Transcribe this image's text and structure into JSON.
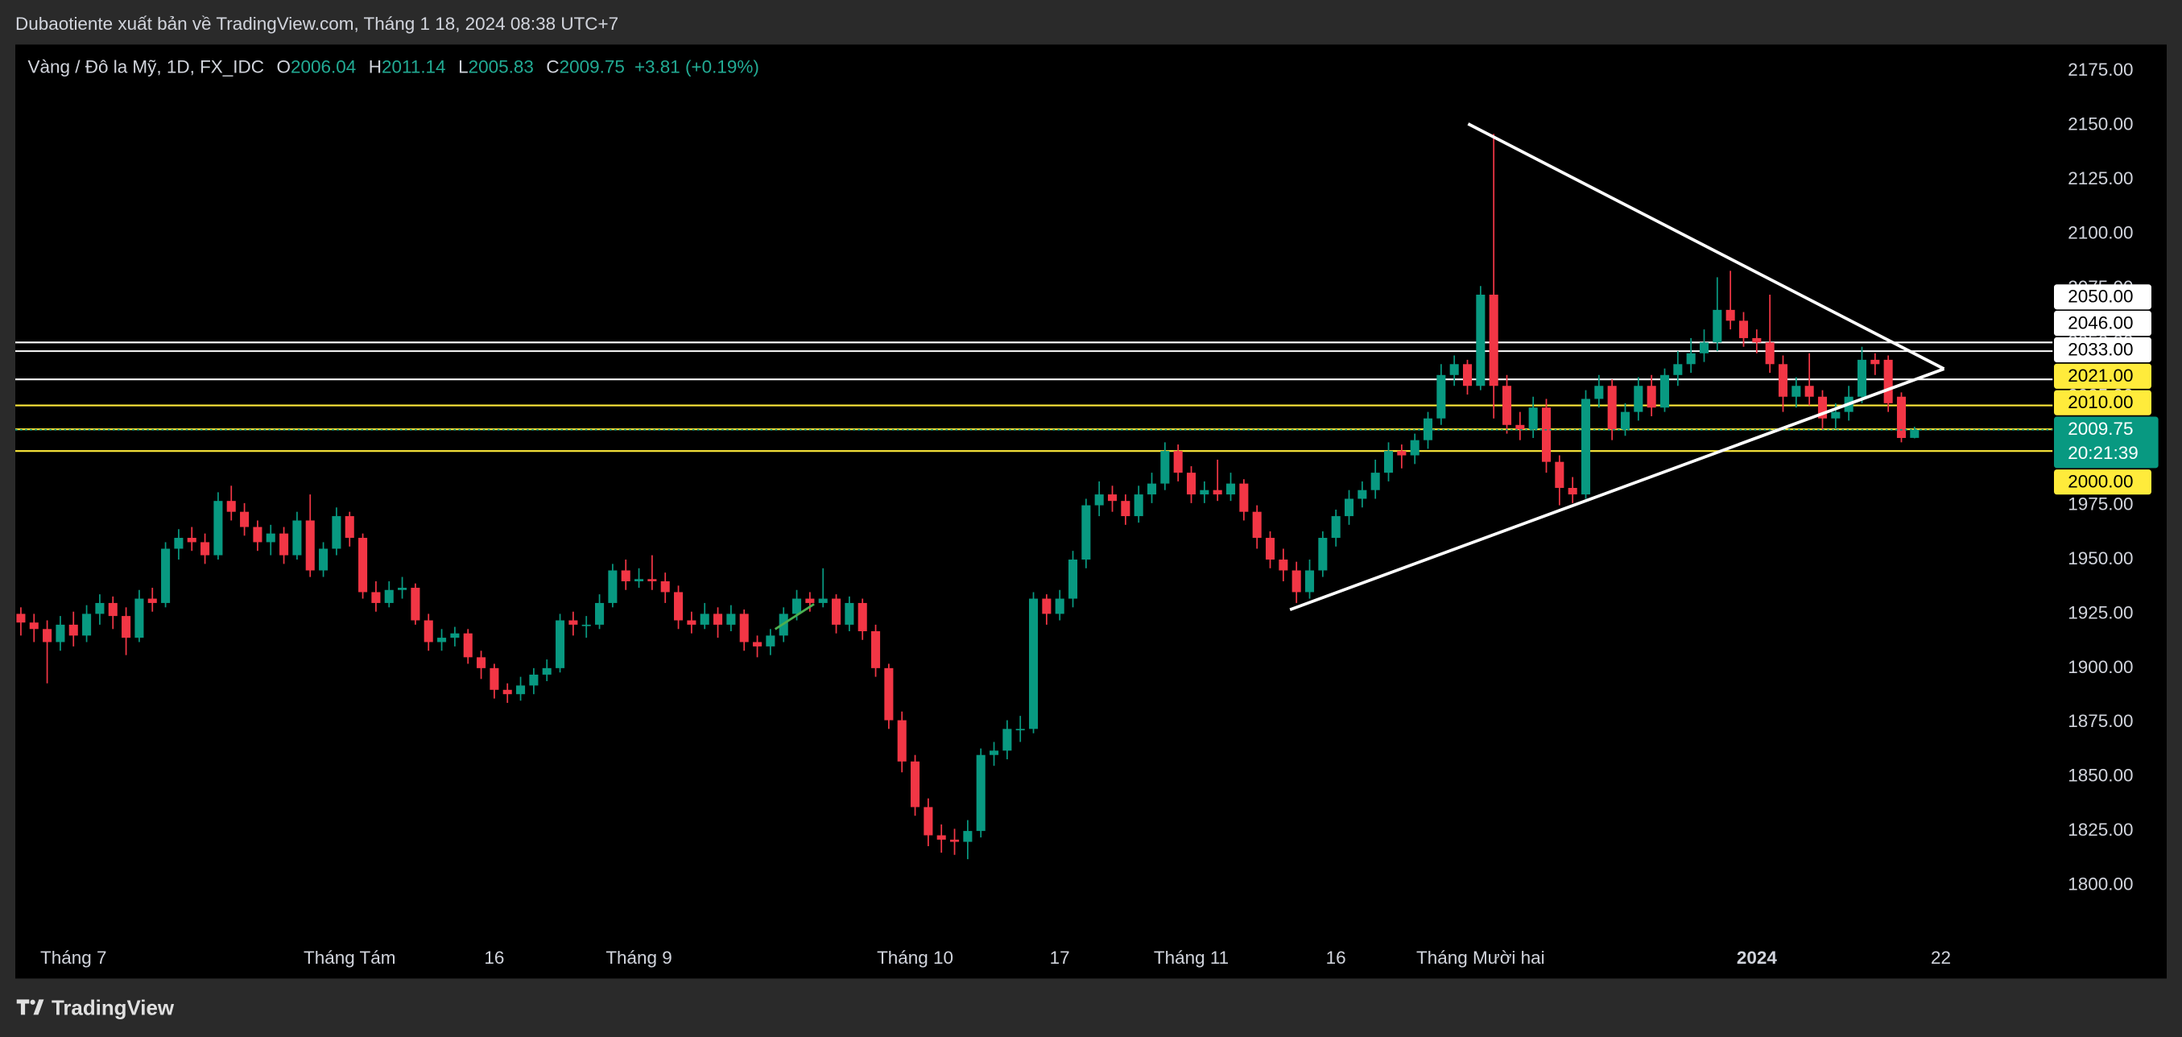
{
  "header": {
    "publisher": "Dubaotiente xuất bản về TradingView.com, Tháng 1 18, 2024 08:38 UTC+7"
  },
  "footer": {
    "brand": "TradingView"
  },
  "legend": {
    "symbol": "Vàng / Đô la Mỹ, 1D, FX_IDC",
    "keys": [
      "O",
      "H",
      "L",
      "C"
    ],
    "change": "+3.81 (+0.19%)",
    "color": "#22ab94"
  },
  "chart_data": {
    "type": "candlestick",
    "up_color": "#089981",
    "down_color": "#f23645",
    "ylim": [
      1773.7,
      2187.2
    ],
    "yticks": [
      {
        "value": 1800,
        "label": "1800.00"
      },
      {
        "value": 1825,
        "label": "1825.00"
      },
      {
        "value": 1850,
        "label": "1850.00"
      },
      {
        "value": 1875,
        "label": "1875.00"
      },
      {
        "value": 1900,
        "label": "1900.00"
      },
      {
        "value": 1925,
        "label": "1925.00"
      },
      {
        "value": 1950,
        "label": "1950.00"
      },
      {
        "value": 1975,
        "label": "1975.00"
      },
      {
        "value": 2000,
        "label": "2000.00"
      },
      {
        "value": 2025,
        "label": "2025.00"
      },
      {
        "value": 2050,
        "label": "2050.00"
      },
      {
        "value": 2075,
        "label": "2075.00"
      },
      {
        "value": 2100,
        "label": "2100.00"
      },
      {
        "value": 2125,
        "label": "2125.00"
      },
      {
        "value": 2150,
        "label": "2150.00"
      },
      {
        "value": 2175,
        "label": "2175.00"
      }
    ],
    "grid": false,
    "levels": [
      {
        "value": 2050,
        "label": "2050.00",
        "color": "#ffffff"
      },
      {
        "value": 2046,
        "label": "2046.00",
        "color": "#ffffff"
      },
      {
        "value": 2033,
        "label": "2033.00",
        "color": "#ffffff"
      },
      {
        "value": 2021,
        "label": "2021.00",
        "color": "#ffeb3b"
      },
      {
        "value": 2010,
        "label": "2010.00",
        "color": "#ffeb3b"
      },
      {
        "value": 2000,
        "label": "2000.00",
        "color": "#ffeb3b"
      }
    ],
    "current_price_color": "#089981",
    "countdown": "20:21:39",
    "categories": [
      null,
      null,
      null,
      null,
      "Tháng 7",
      null,
      null,
      null,
      null,
      null,
      null,
      null,
      null,
      null,
      null,
      null,
      null,
      null,
      null,
      null,
      null,
      null,
      null,
      null,
      null,
      "Tháng Tám",
      null,
      null,
      null,
      null,
      null,
      null,
      null,
      null,
      null,
      null,
      "16",
      null,
      null,
      null,
      null,
      null,
      null,
      null,
      null,
      null,
      null,
      "Tháng 9",
      null,
      null,
      null,
      null,
      null,
      null,
      null,
      null,
      null,
      null,
      null,
      null,
      null,
      null,
      null,
      null,
      null,
      null,
      null,
      null,
      "Tháng 10",
      null,
      null,
      null,
      null,
      null,
      null,
      null,
      null,
      null,
      null,
      "17",
      null,
      null,
      null,
      null,
      null,
      null,
      null,
      null,
      null,
      "Tháng 11",
      null,
      null,
      null,
      null,
      null,
      null,
      null,
      null,
      null,
      null,
      "16",
      null,
      null,
      null,
      null,
      null,
      null,
      null,
      null,
      null,
      null,
      "Tháng Mười hai",
      null,
      null,
      null,
      null,
      null,
      null,
      null,
      null,
      null,
      null,
      null,
      null,
      null,
      null,
      null,
      null,
      null,
      null,
      null,
      null,
      "2024",
      null,
      null,
      null,
      null,
      null,
      null,
      null,
      null,
      null,
      null,
      null,
      null,
      null,
      "22",
      null,
      null,
      null,
      null,
      null,
      null,
      null,
      null
    ],
    "ohlc": [
      [
        1925,
        1928,
        1915,
        1921
      ],
      [
        1921,
        1925,
        1912,
        1918
      ],
      [
        1918,
        1922,
        1893,
        1912
      ],
      [
        1912,
        1924,
        1908,
        1920
      ],
      [
        1920,
        1926,
        1910,
        1915
      ],
      [
        1915,
        1929,
        1912,
        1925
      ],
      [
        1925,
        1934,
        1920,
        1930
      ],
      [
        1930,
        1933,
        1918,
        1924
      ],
      [
        1924,
        1928,
        1906,
        1914
      ],
      [
        1914,
        1936,
        1912,
        1932
      ],
      [
        1932,
        1937,
        1926,
        1930
      ],
      [
        1930,
        1958,
        1928,
        1955
      ],
      [
        1955,
        1964,
        1950,
        1960
      ],
      [
        1960,
        1965,
        1954,
        1958
      ],
      [
        1958,
        1962,
        1948,
        1952
      ],
      [
        1952,
        1981,
        1950,
        1977
      ],
      [
        1977,
        1984,
        1968,
        1972
      ],
      [
        1972,
        1976,
        1961,
        1965
      ],
      [
        1965,
        1968,
        1954,
        1958
      ],
      [
        1958,
        1966,
        1952,
        1962
      ],
      [
        1962,
        1965,
        1948,
        1952
      ],
      [
        1952,
        1972,
        1950,
        1968
      ],
      [
        1968,
        1980,
        1942,
        1945
      ],
      [
        1945,
        1958,
        1942,
        1955
      ],
      [
        1955,
        1974,
        1952,
        1970
      ],
      [
        1970,
        1972,
        1956,
        1960
      ],
      [
        1960,
        1962,
        1932,
        1935
      ],
      [
        1935,
        1940,
        1926,
        1930
      ],
      [
        1930,
        1940,
        1928,
        1936
      ],
      [
        1936,
        1942,
        1932,
        1937
      ],
      [
        1937,
        1939,
        1920,
        1922
      ],
      [
        1922,
        1925,
        1908,
        1912
      ],
      [
        1912,
        1918,
        1908,
        1914
      ],
      [
        1914,
        1919,
        1910,
        1916
      ],
      [
        1916,
        1918,
        1902,
        1905
      ],
      [
        1905,
        1908,
        1895,
        1900
      ],
      [
        1900,
        1902,
        1886,
        1890
      ],
      [
        1890,
        1893,
        1884,
        1888
      ],
      [
        1888,
        1896,
        1885,
        1892
      ],
      [
        1892,
        1900,
        1888,
        1897
      ],
      [
        1897,
        1904,
        1894,
        1900
      ],
      [
        1900,
        1925,
        1898,
        1922
      ],
      [
        1922,
        1926,
        1915,
        1920
      ],
      [
        1920,
        1924,
        1914,
        1920
      ],
      [
        1920,
        1934,
        1918,
        1930
      ],
      [
        1930,
        1948,
        1928,
        1945
      ],
      [
        1945,
        1950,
        1936,
        1940
      ],
      [
        1940,
        1946,
        1937,
        1941
      ],
      [
        1941,
        1952,
        1936,
        1940
      ],
      [
        1940,
        1944,
        1930,
        1935
      ],
      [
        1935,
        1938,
        1918,
        1922
      ],
      [
        1922,
        1926,
        1916,
        1920
      ],
      [
        1920,
        1930,
        1918,
        1925
      ],
      [
        1925,
        1928,
        1914,
        1920
      ],
      [
        1920,
        1929,
        1917,
        1925
      ],
      [
        1925,
        1927,
        1908,
        1912
      ],
      [
        1912,
        1915,
        1905,
        1910
      ],
      [
        1910,
        1918,
        1906,
        1915
      ],
      [
        1915,
        1928,
        1912,
        1925
      ],
      [
        1925,
        1936,
        1922,
        1932
      ],
      [
        1932,
        1935,
        1926,
        1930
      ],
      [
        1930,
        1946,
        1928,
        1932
      ],
      [
        1932,
        1934,
        1916,
        1920
      ],
      [
        1920,
        1933,
        1917,
        1930
      ],
      [
        1930,
        1932,
        1913,
        1917
      ],
      [
        1917,
        1920,
        1896,
        1900
      ],
      [
        1900,
        1902,
        1872,
        1876
      ],
      [
        1876,
        1880,
        1852,
        1857
      ],
      [
        1857,
        1860,
        1832,
        1836
      ],
      [
        1836,
        1840,
        1818,
        1823
      ],
      [
        1823,
        1828,
        1815,
        1821
      ],
      [
        1821,
        1826,
        1814,
        1820
      ],
      [
        1820,
        1830,
        1812,
        1825
      ],
      [
        1825,
        1863,
        1822,
        1860
      ],
      [
        1860,
        1866,
        1855,
        1862
      ],
      [
        1862,
        1876,
        1858,
        1872
      ],
      [
        1872,
        1878,
        1866,
        1872
      ],
      [
        1872,
        1935,
        1870,
        1932
      ],
      [
        1932,
        1934,
        1920,
        1925
      ],
      [
        1925,
        1936,
        1922,
        1932
      ],
      [
        1932,
        1954,
        1928,
        1950
      ],
      [
        1950,
        1978,
        1946,
        1975
      ],
      [
        1975,
        1986,
        1970,
        1980
      ],
      [
        1980,
        1984,
        1972,
        1977
      ],
      [
        1977,
        1980,
        1966,
        1970
      ],
      [
        1970,
        1984,
        1967,
        1980
      ],
      [
        1980,
        1990,
        1976,
        1985
      ],
      [
        1985,
        2004,
        1982,
        2000
      ],
      [
        2000,
        2003,
        1986,
        1990
      ],
      [
        1990,
        1993,
        1976,
        1980
      ],
      [
        1980,
        1986,
        1976,
        1982
      ],
      [
        1982,
        1996,
        1977,
        1980
      ],
      [
        1980,
        1990,
        1977,
        1985
      ],
      [
        1985,
        1987,
        1968,
        1972
      ],
      [
        1972,
        1975,
        1955,
        1960
      ],
      [
        1960,
        1963,
        1946,
        1950
      ],
      [
        1950,
        1955,
        1940,
        1945
      ],
      [
        1945,
        1949,
        1930,
        1935
      ],
      [
        1935,
        1950,
        1932,
        1945
      ],
      [
        1945,
        1963,
        1942,
        1960
      ],
      [
        1960,
        1973,
        1956,
        1970
      ],
      [
        1970,
        1982,
        1966,
        1978
      ],
      [
        1978,
        1986,
        1974,
        1982
      ],
      [
        1982,
        1996,
        1978,
        1990
      ],
      [
        1990,
        2004,
        1986,
        2000
      ],
      [
        2000,
        2003,
        1992,
        1998
      ],
      [
        1998,
        2008,
        1994,
        2005
      ],
      [
        2005,
        2018,
        2001,
        2015
      ],
      [
        2015,
        2040,
        2012,
        2035
      ],
      [
        2035,
        2044,
        2030,
        2040
      ],
      [
        2040,
        2042,
        2026,
        2030
      ],
      [
        2030,
        2076,
        2028,
        2072
      ],
      [
        2072,
        2146,
        2015,
        2030
      ],
      [
        2030,
        2035,
        2008,
        2012
      ],
      [
        2012,
        2018,
        2005,
        2010
      ],
      [
        2010,
        2025,
        2006,
        2020
      ],
      [
        2020,
        2024,
        1990,
        1995
      ],
      [
        1995,
        1998,
        1975,
        1983
      ],
      [
        1983,
        1988,
        1976,
        1980
      ],
      [
        1980,
        2028,
        1978,
        2024
      ],
      [
        2024,
        2035,
        2020,
        2030
      ],
      [
        2030,
        2033,
        2005,
        2010
      ],
      [
        2010,
        2022,
        2007,
        2018
      ],
      [
        2018,
        2034,
        2014,
        2030
      ],
      [
        2030,
        2035,
        2016,
        2020
      ],
      [
        2020,
        2038,
        2018,
        2035
      ],
      [
        2035,
        2046,
        2030,
        2040
      ],
      [
        2040,
        2052,
        2036,
        2045
      ],
      [
        2045,
        2056,
        2041,
        2050
      ],
      [
        2050,
        2080,
        2046,
        2065
      ],
      [
        2065,
        2083,
        2056,
        2060
      ],
      [
        2060,
        2064,
        2048,
        2052
      ],
      [
        2052,
        2056,
        2045,
        2050
      ],
      [
        2050,
        2072,
        2036,
        2040
      ],
      [
        2040,
        2044,
        2018,
        2025
      ],
      [
        2025,
        2034,
        2020,
        2030
      ],
      [
        2030,
        2045,
        2021,
        2025
      ],
      [
        2025,
        2028,
        2010,
        2015
      ],
      [
        2015,
        2022,
        2010,
        2018
      ],
      [
        2018,
        2030,
        2014,
        2025
      ],
      [
        2025,
        2048,
        2022,
        2042
      ],
      [
        2042,
        2045,
        2035,
        2040
      ],
      [
        2042,
        2044,
        2018,
        2022
      ],
      [
        2025,
        2027,
        2004,
        2006
      ],
      [
        2006.04,
        2011.14,
        2005.83,
        2009.75
      ],
      null,
      null,
      null,
      null,
      null,
      null,
      null,
      null,
      null,
      null
    ]
  }
}
